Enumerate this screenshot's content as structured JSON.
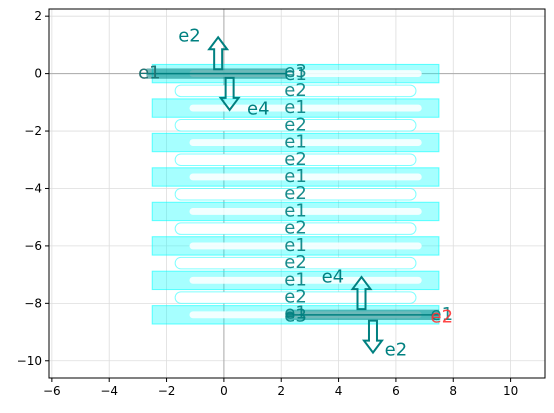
{
  "chart_data": {
    "type": "scatter",
    "title": "",
    "xlabel": "",
    "ylabel": "",
    "xlim": [
      -6.1,
      11.2
    ],
    "ylim": [
      -10.6,
      2.25
    ],
    "xticks": [
      -6,
      -4,
      -2,
      0,
      2,
      4,
      6,
      8,
      10
    ],
    "yticks": [
      2,
      0,
      -2,
      -4,
      -6,
      -8,
      -10
    ],
    "grid": true,
    "colors": {
      "fill": "#00ffff",
      "fill_opacity": 0.35,
      "label": "#008080",
      "port_red": "#ff3333",
      "cutout": "#ffffff"
    },
    "meander": {
      "x_left": -2.5,
      "x_right": 7.5,
      "row_centers": [
        0,
        -1.2,
        -2.4,
        -3.6,
        -4.8,
        -6.0,
        -7.2,
        -8.4
      ],
      "row_half_height": 0.32,
      "notch_x_start": -1.7,
      "notch_x_end": 6.7,
      "notch_half_height": 0.2
    },
    "waveguides": [
      {
        "name": "top",
        "x0": -2.7,
        "x1": 2.2,
        "y": 0
      },
      {
        "name": "bottom",
        "x0": 2.2,
        "x1": 7.5,
        "y": -8.4
      }
    ],
    "arrows": [
      {
        "label": "e2",
        "x": -0.2,
        "y": 0.15,
        "dir": "up",
        "label_x": -1.2,
        "label_y": 1.3
      },
      {
        "label": "e4",
        "x": 0.2,
        "y": -0.15,
        "dir": "down",
        "label_x": 1.2,
        "label_y": -1.25
      },
      {
        "label": "e4",
        "x": 4.8,
        "y": -8.2,
        "dir": "up",
        "label_x": 3.8,
        "label_y": -7.1
      },
      {
        "label": "e2",
        "x": 5.2,
        "y": -8.6,
        "dir": "down",
        "label_x": 6.0,
        "label_y": -9.65
      }
    ],
    "port_labels": [
      {
        "text": "e1",
        "x": -2.6,
        "y": 0,
        "color": "port_red"
      },
      {
        "text": "e1",
        "x": -2.6,
        "y": 0,
        "color": "label"
      },
      {
        "text": "e1",
        "x": 7.6,
        "y": -8.4,
        "color": "label"
      },
      {
        "text": "e2",
        "x": 7.6,
        "y": -8.5,
        "color": "port_red"
      }
    ],
    "stack_labels": {
      "x": 2.5,
      "items": [
        {
          "text": "e3",
          "y": 0.05
        },
        {
          "text": "e1",
          "y": -0.05
        },
        {
          "text": "e2",
          "y": -0.6
        },
        {
          "text": "e1",
          "y": -1.2
        },
        {
          "text": "e2",
          "y": -1.8
        },
        {
          "text": "e1",
          "y": -2.4
        },
        {
          "text": "e2",
          "y": -3.0
        },
        {
          "text": "e1",
          "y": -3.6
        },
        {
          "text": "e2",
          "y": -4.2
        },
        {
          "text": "e1",
          "y": -4.8
        },
        {
          "text": "e2",
          "y": -5.4
        },
        {
          "text": "e1",
          "y": -6.0
        },
        {
          "text": "e2",
          "y": -6.6
        },
        {
          "text": "e1",
          "y": -7.2
        },
        {
          "text": "e2",
          "y": -7.8
        },
        {
          "text": "e1",
          "y": -8.35
        },
        {
          "text": "e3",
          "y": -8.45
        }
      ]
    }
  }
}
